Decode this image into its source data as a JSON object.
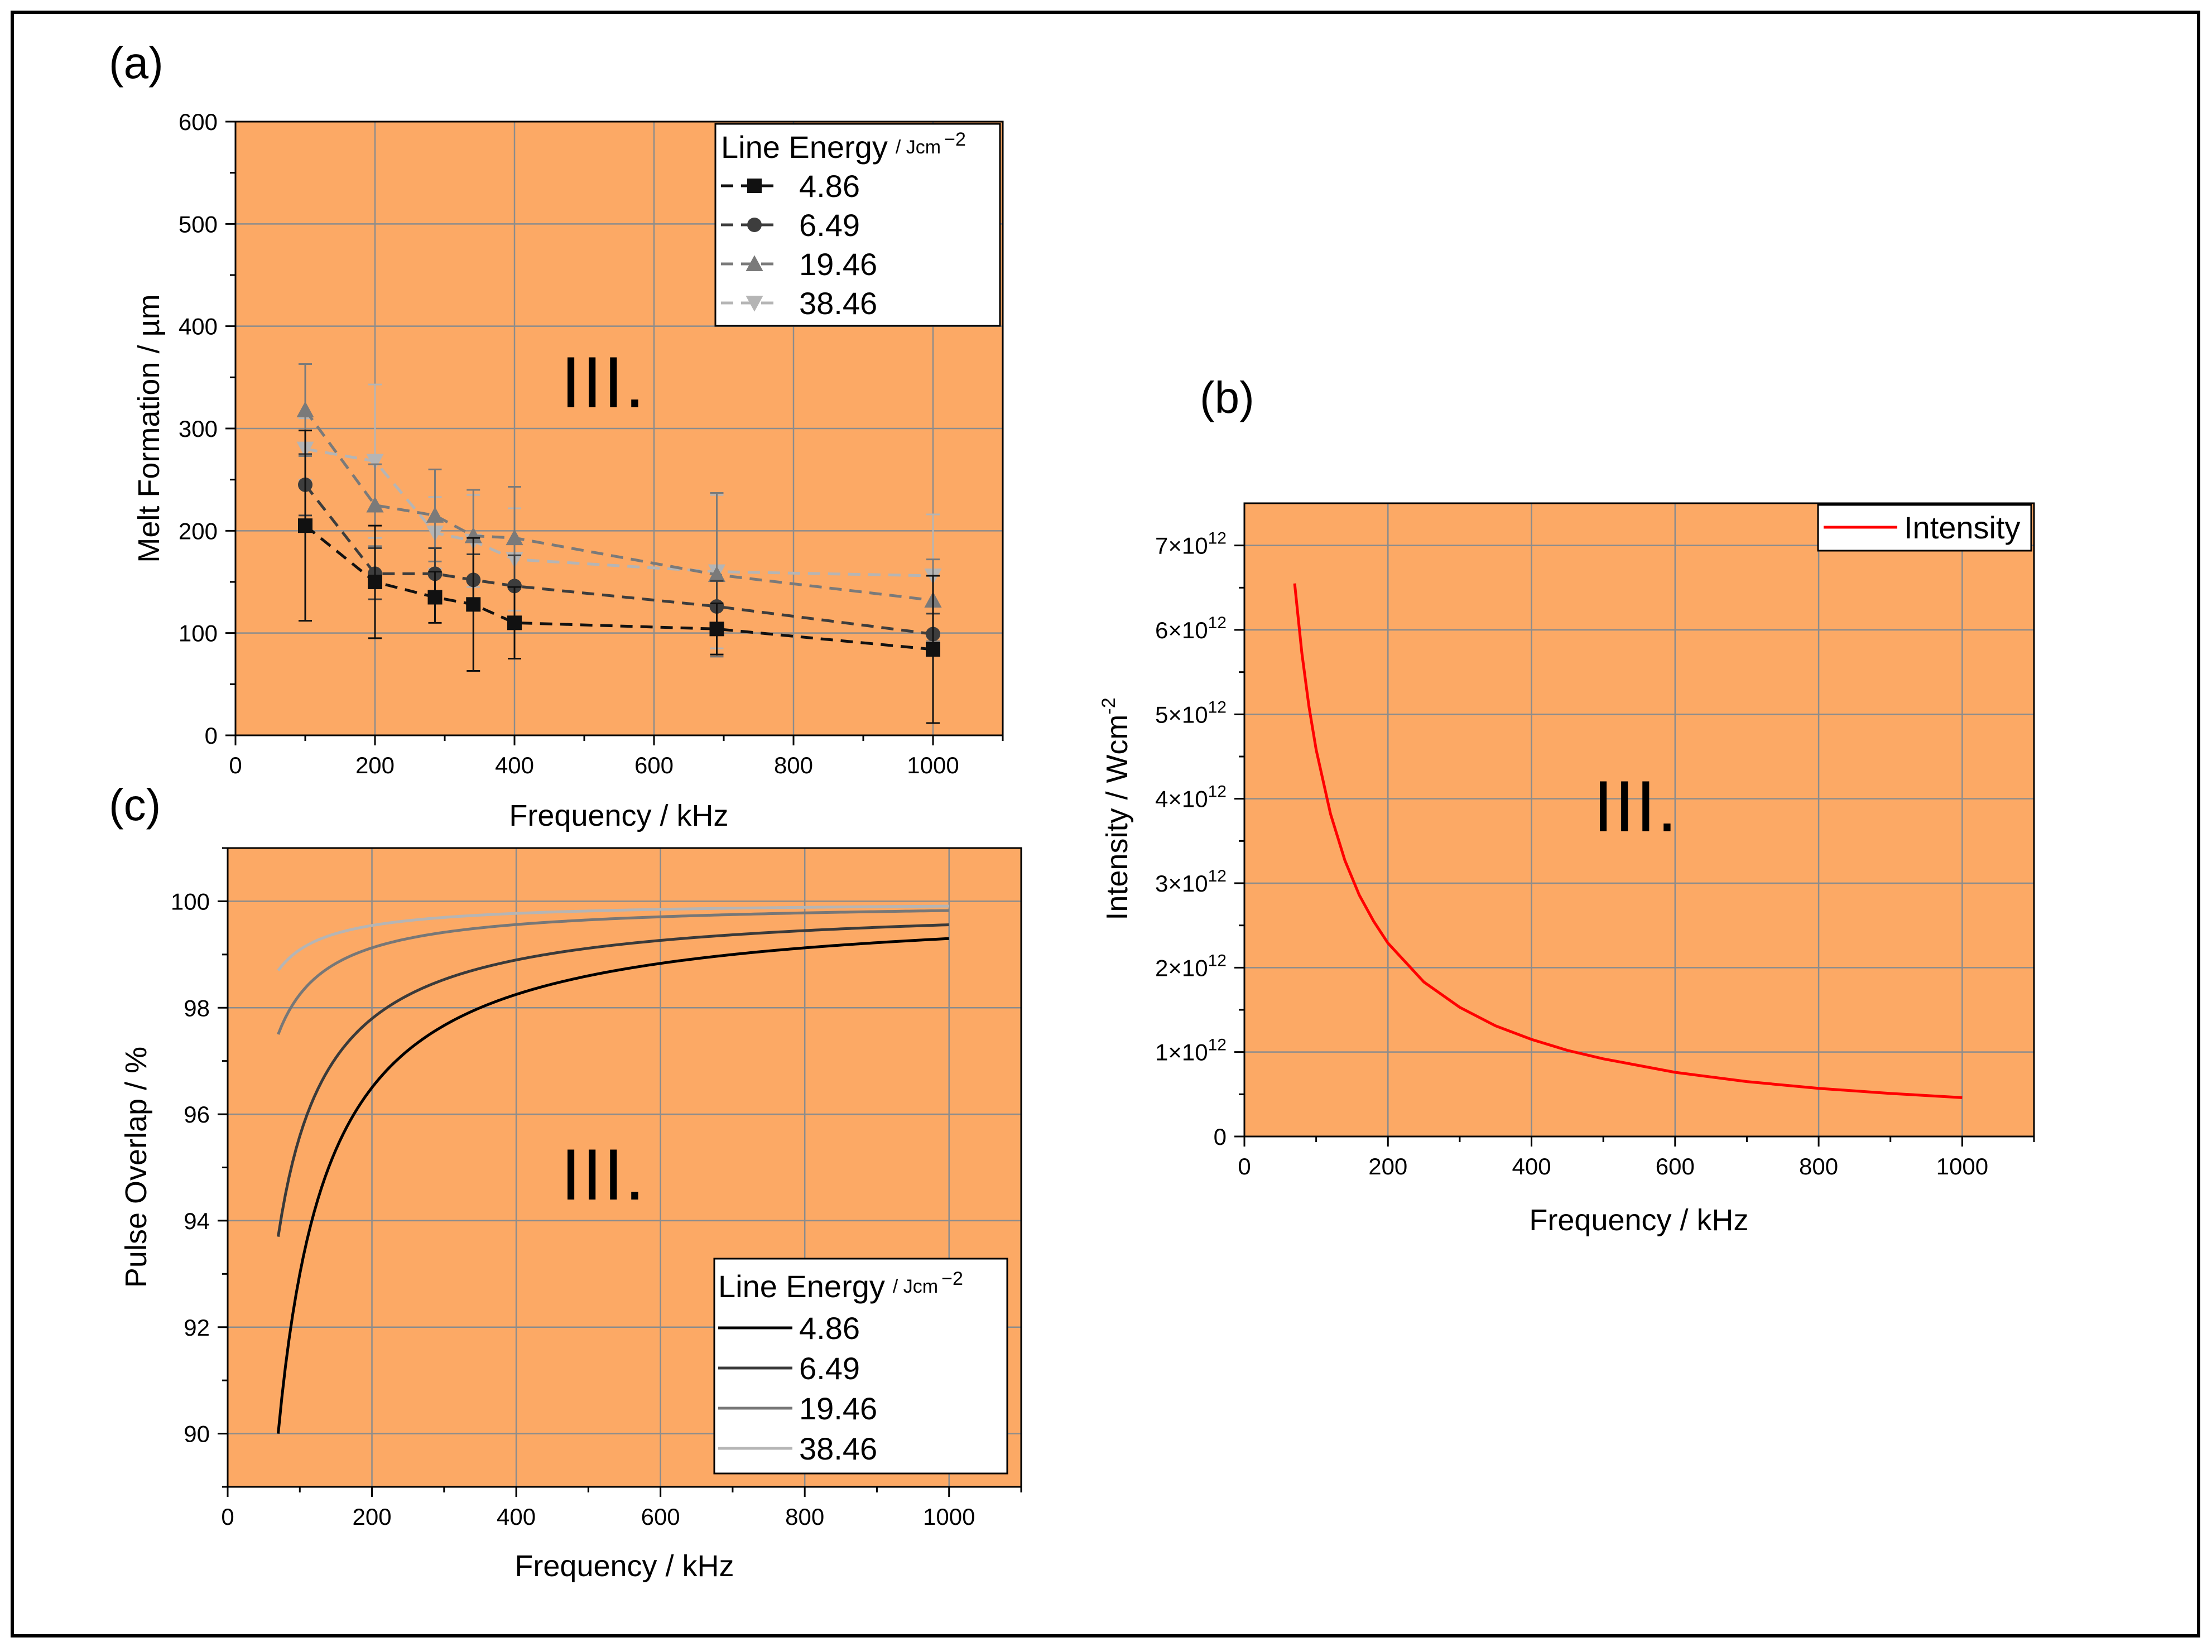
{
  "figure": {
    "frame_color": "#000000",
    "plot_bg": "#FCA965",
    "grid_color": "#8c8c8c"
  },
  "chart_data": [
    {
      "id": "a",
      "panel_label": "(a)",
      "type": "line",
      "region_label": "III.",
      "xlabel": "Frequency / kHz",
      "ylabel": "Melt Formation / µm",
      "xlim": [
        0,
        1100
      ],
      "ylim": [
        0,
        600
      ],
      "xticks": [
        0,
        200,
        400,
        600,
        800,
        1000
      ],
      "yticks": [
        0,
        100,
        200,
        300,
        400,
        500,
        600
      ],
      "legend": {
        "title": "Line Energy",
        "unit": "Jcm",
        "unit_exp": "−2",
        "position": "top-right"
      },
      "series": [
        {
          "name": "4.86",
          "marker": "square",
          "color": "#111111",
          "x": [
            100,
            200,
            286,
            341,
            400,
            690,
            1000
          ],
          "y": [
            205,
            150,
            135,
            128,
            110,
            104,
            84
          ],
          "err": [
            93,
            55,
            25,
            65,
            35,
            25,
            72
          ]
        },
        {
          "name": "6.49",
          "marker": "circle",
          "color": "#3d3d3d",
          "x": [
            100,
            200,
            286,
            341,
            400,
            690,
            1000
          ],
          "y": [
            245,
            158,
            158,
            152,
            146,
            126,
            99
          ],
          "err": [
            30,
            25,
            25,
            25,
            30,
            25,
            20
          ]
        },
        {
          "name": "19.46",
          "marker": "triangle-up",
          "color": "#7a7a7a",
          "x": [
            100,
            200,
            286,
            341,
            400,
            690,
            1000
          ],
          "y": [
            318,
            225,
            215,
            195,
            193,
            157,
            132
          ],
          "err": [
            45,
            40,
            45,
            45,
            50,
            80,
            40
          ]
        },
        {
          "name": "38.46",
          "marker": "triangle-down",
          "color": "#b5b5b5",
          "x": [
            100,
            200,
            286,
            341,
            400,
            690,
            1000
          ],
          "y": [
            280,
            268,
            198,
            190,
            172,
            160,
            156
          ],
          "err": [
            30,
            75,
            35,
            45,
            50,
            75,
            60
          ]
        }
      ]
    },
    {
      "id": "b",
      "panel_label": "(b)",
      "type": "line",
      "region_label": "III.",
      "xlabel": "Frequency / kHz",
      "ylabel": "Intensity / Wcm",
      "ylabel_exp": "-2",
      "xlim": [
        0,
        1100
      ],
      "ylim": [
        0,
        7500000000000.0
      ],
      "xticks": [
        0,
        200,
        400,
        600,
        800,
        1000
      ],
      "yticks": [
        0,
        1000000000000.0,
        2000000000000.0,
        3000000000000.0,
        4000000000000.0,
        5000000000000.0,
        6000000000000.0,
        7000000000000.0
      ],
      "ytick_labels": [
        {
          "mant": "0",
          "exp": ""
        },
        {
          "mant": "1×10",
          "exp": "12"
        },
        {
          "mant": "2×10",
          "exp": "12"
        },
        {
          "mant": "3×10",
          "exp": "12"
        },
        {
          "mant": "4×10",
          "exp": "12"
        },
        {
          "mant": "5×10",
          "exp": "12"
        },
        {
          "mant": "6×10",
          "exp": "12"
        },
        {
          "mant": "7×10",
          "exp": "12"
        }
      ],
      "legend": {
        "position": "top-right",
        "entries": [
          "Intensity"
        ]
      },
      "series": [
        {
          "name": "Intensity",
          "color": "#ff0000",
          "x": [
            70,
            80,
            90,
            100,
            120,
            140,
            160,
            180,
            200,
            250,
            300,
            350,
            400,
            450,
            500,
            600,
            700,
            800,
            900,
            1000
          ],
          "y": [
            6550000000000.0,
            5730000000000.0,
            5090000000000.0,
            4580000000000.0,
            3820000000000.0,
            3270000000000.0,
            2860000000000.0,
            2550000000000.0,
            2290000000000.0,
            1830000000000.0,
            1530000000000.0,
            1310000000000.0,
            1150000000000.0,
            1020000000000.0,
            920000000000.0,
            760000000000.0,
            650000000000.0,
            570000000000.0,
            510000000000.0,
            460000000000.0
          ]
        }
      ]
    },
    {
      "id": "c",
      "panel_label": "(c)",
      "type": "line",
      "region_label": "III.",
      "xlabel": "Frequency / kHz",
      "ylabel": "Pulse Overlap / %",
      "xlim": [
        0,
        1100
      ],
      "ylim": [
        89,
        101
      ],
      "xticks": [
        0,
        200,
        400,
        600,
        800,
        1000
      ],
      "yticks": [
        90,
        92,
        94,
        96,
        98,
        100
      ],
      "legend": {
        "title": "Line Energy",
        "unit": "Jcm",
        "unit_exp": "−2",
        "position": "bottom-right"
      },
      "series": [
        {
          "name": "4.86",
          "color": "#000000",
          "start_x": 70,
          "start_y": 90.0,
          "end_y": 99.3
        },
        {
          "name": "6.49",
          "color": "#3a3a3a",
          "start_x": 70,
          "start_y": 93.7,
          "end_y": 99.56
        },
        {
          "name": "19.46",
          "color": "#777777",
          "start_x": 70,
          "start_y": 97.5,
          "end_y": 99.82
        },
        {
          "name": "38.46",
          "color": "#b5b5b5",
          "start_x": 70,
          "start_y": 98.7,
          "end_y": 99.9
        }
      ]
    }
  ]
}
